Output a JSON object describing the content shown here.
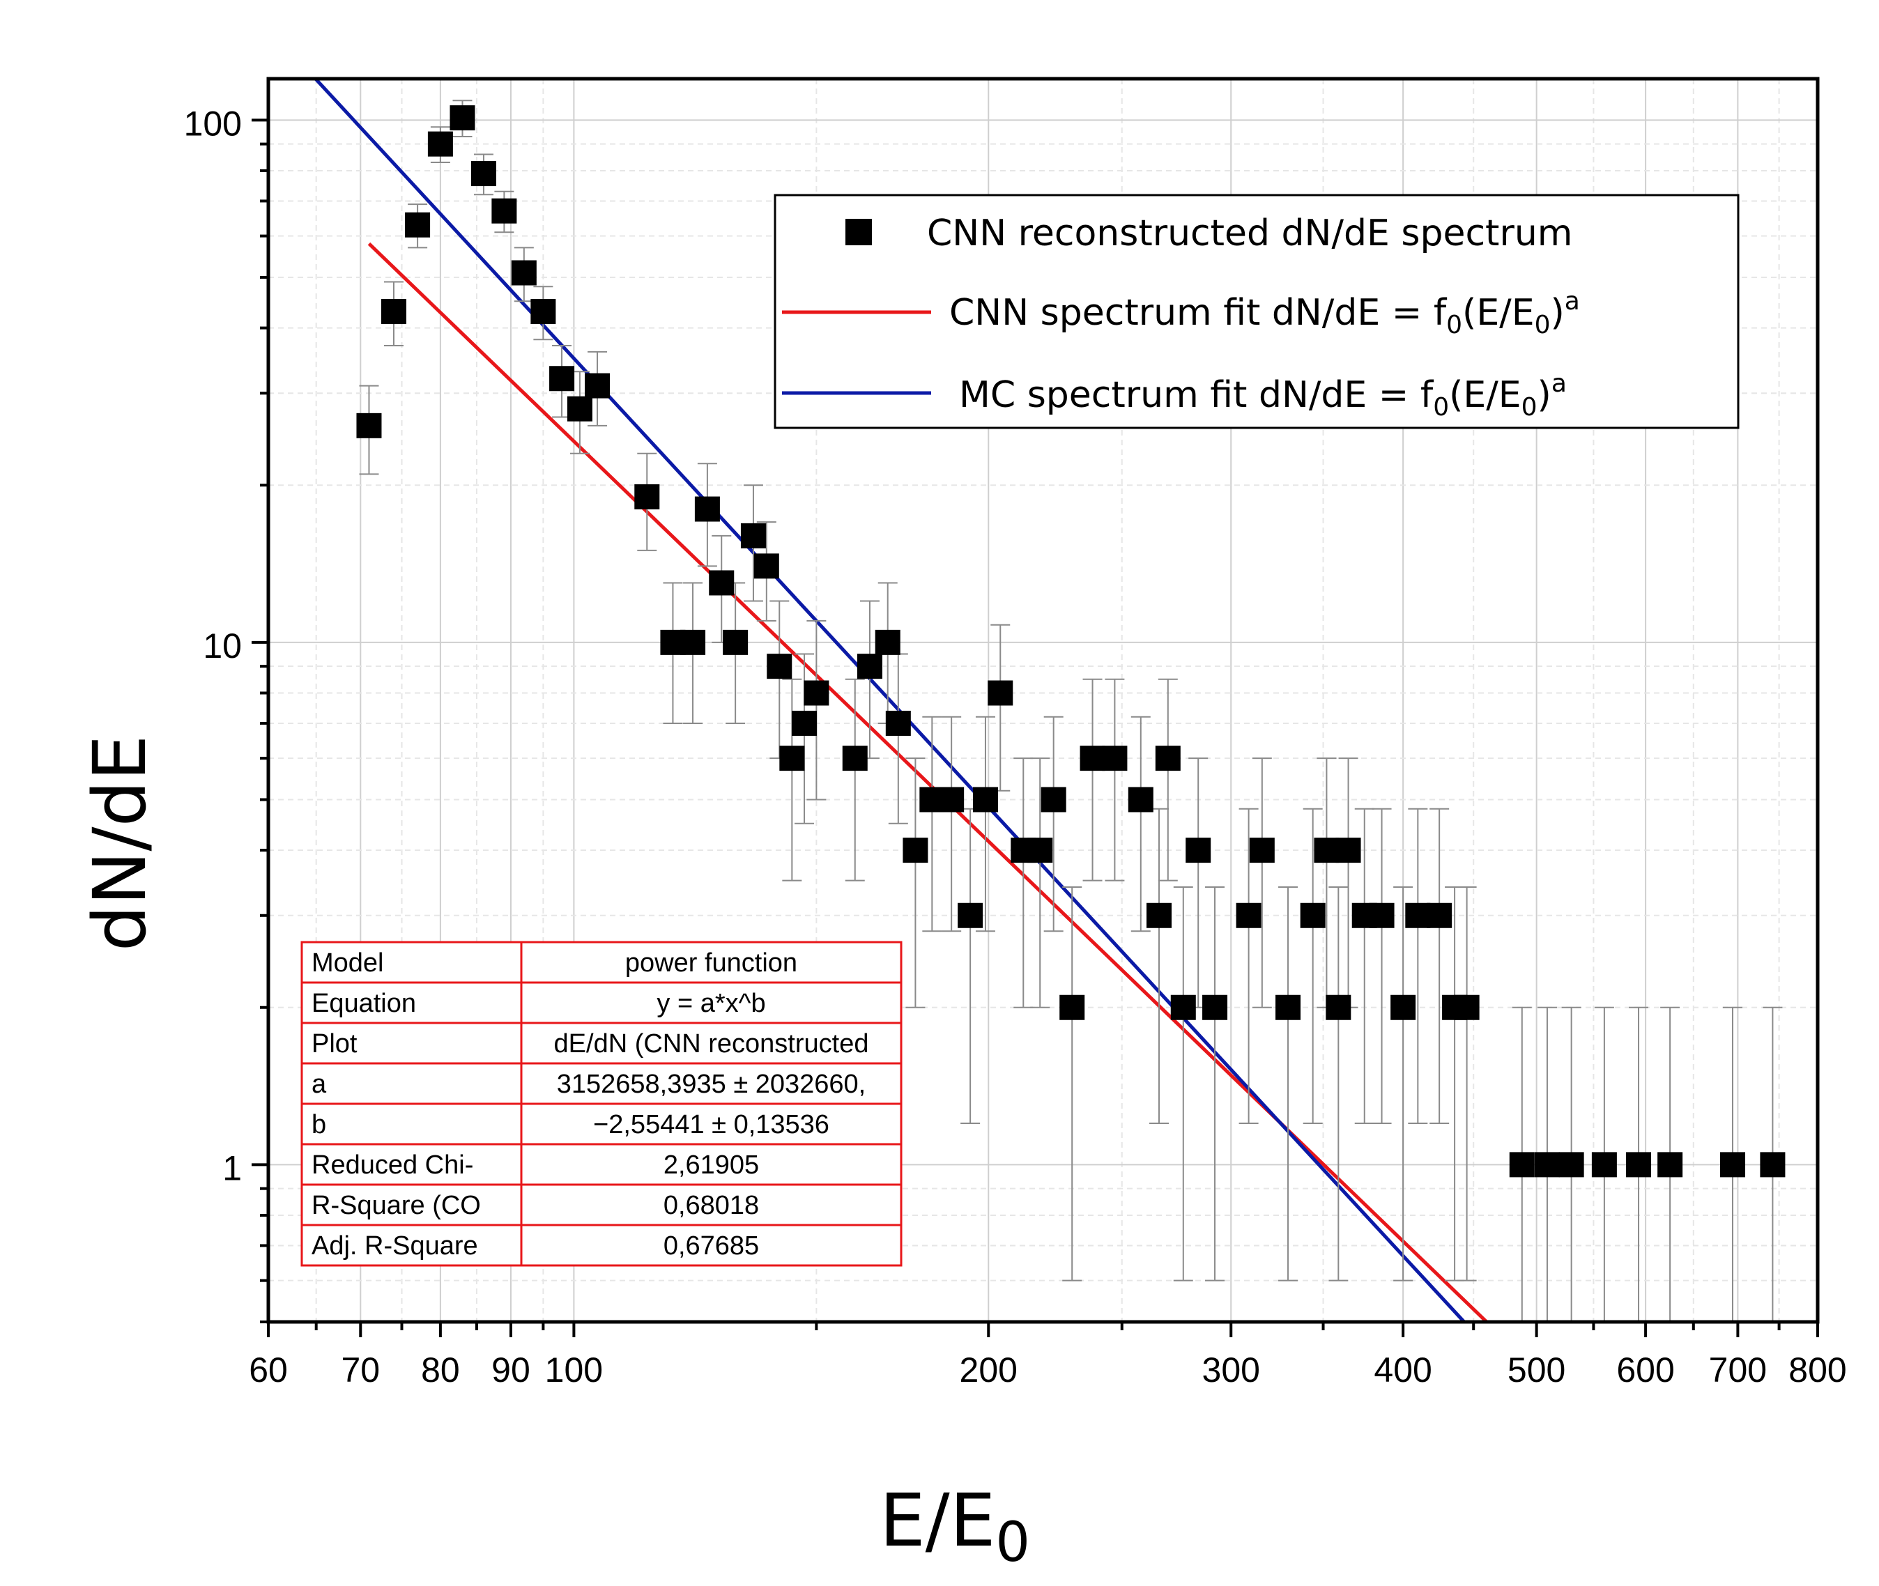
{
  "chart_data": {
    "type": "scatter",
    "xlabel": "E/E",
    "xlabel_sub": "0",
    "ylabel": "dN/dE",
    "xscale": "log",
    "yscale": "log",
    "xlim": [
      60,
      800
    ],
    "ylim": [
      0.5,
      120
    ],
    "x_ticks": [
      60,
      70,
      80,
      90,
      100,
      200,
      300,
      400,
      500,
      600,
      700,
      800
    ],
    "x_tick_labels": [
      "60",
      "70",
      "80",
      "90",
      "100",
      "200",
      "300",
      "400",
      "500",
      "600",
      "700",
      "800"
    ],
    "y_ticks": [
      1,
      10,
      100
    ],
    "y_tick_labels": [
      "1",
      "10",
      "100"
    ],
    "grid": true,
    "legend_placement": "top-right",
    "legend": [
      {
        "label": "CNN reconstructed dN/dE spectrum",
        "marker": "square",
        "color": "#000000"
      },
      {
        "label": "CNN spectrum fit dN/dE = f",
        "sub": "0",
        "tail": "(E/E",
        "sub2": "0",
        "tail2": ")",
        "sup": "a",
        "color": "#e8171a"
      },
      {
        "label": "MC spectrum fit dN/dE = f",
        "sub": "0",
        "tail": "(E/E",
        "sub2": "0",
        "tail2": ")",
        "sup": "a",
        "color": "#0b1aa6"
      }
    ],
    "series": [
      {
        "name": "CNN reconstructed dN/dE spectrum",
        "marker": "square",
        "color": "#000000",
        "x": [
          71,
          74,
          77,
          80,
          83,
          86,
          89,
          92,
          95,
          98,
          101,
          104,
          113,
          118,
          122,
          125,
          128,
          131,
          135,
          138,
          141,
          144,
          147,
          150,
          160,
          164,
          169,
          172,
          177,
          182,
          188,
          194,
          199,
          204,
          212,
          218,
          223,
          230,
          238,
          247,
          258,
          266,
          270,
          277,
          284,
          292,
          309,
          316,
          330,
          344,
          352,
          359,
          365,
          375,
          386,
          400,
          410,
          425,
          436,
          445,
          488,
          509,
          530,
          560,
          593,
          625,
          694,
          742
        ],
        "y": [
          26,
          43,
          63,
          90,
          101,
          79,
          67,
          51,
          43,
          32,
          28,
          31,
          19,
          10,
          10,
          18,
          13,
          10,
          16,
          14,
          9,
          6,
          7,
          8,
          6,
          9,
          10,
          7,
          4,
          5,
          5,
          3,
          5,
          8,
          4,
          4,
          5,
          2,
          6,
          6,
          5,
          3,
          6,
          2,
          4,
          2,
          3,
          4,
          2,
          3,
          4,
          2,
          4,
          3,
          3,
          2,
          3,
          3,
          2,
          2,
          1,
          1,
          1,
          1,
          1,
          1,
          1,
          1
        ],
        "y_err": [
          5,
          6,
          6,
          7,
          8,
          7,
          6,
          6,
          5,
          5,
          5,
          5,
          4,
          3,
          3,
          4,
          3,
          3,
          4,
          3,
          3,
          2.5,
          2.5,
          3,
          2.5,
          3,
          3,
          2.5,
          2,
          2.2,
          2.2,
          1.8,
          2.2,
          2.8,
          2,
          2,
          2.2,
          1.4,
          2.5,
          2.5,
          2.2,
          1.8,
          2.5,
          1.4,
          2,
          1.4,
          1.8,
          2,
          1.4,
          1.8,
          2,
          1.4,
          2,
          1.8,
          1.8,
          1.4,
          1.8,
          1.8,
          1.4,
          1.4,
          1,
          1,
          1,
          1,
          1,
          1,
          1,
          1
        ]
      },
      {
        "name": "CNN spectrum fit dN/dE = f0(E/E0)^a",
        "type": "line",
        "color": "#e8171a",
        "x": [
          71,
          460
        ],
        "y": [
          58,
          0.5
        ]
      },
      {
        "name": "MC spectrum fit dN/dE = f0(E/E0)^a",
        "type": "line",
        "color": "#0b1aa6",
        "x": [
          64,
          443
        ],
        "y": [
          125,
          0.5
        ]
      }
    ],
    "fit_table": [
      [
        "Model",
        "power function"
      ],
      [
        "Equation",
        "y = a*x^b"
      ],
      [
        "Plot",
        "dE/dN (CNN reconstructed"
      ],
      [
        "a",
        "3152658,3935 ± 2032660,"
      ],
      [
        "b",
        "−2,55441 ± 0,13536"
      ],
      [
        "Reduced Chi-",
        "2,61905"
      ],
      [
        "R-Square (CO",
        "0,68018"
      ],
      [
        "Adj. R-Square",
        "0,67685"
      ]
    ]
  }
}
